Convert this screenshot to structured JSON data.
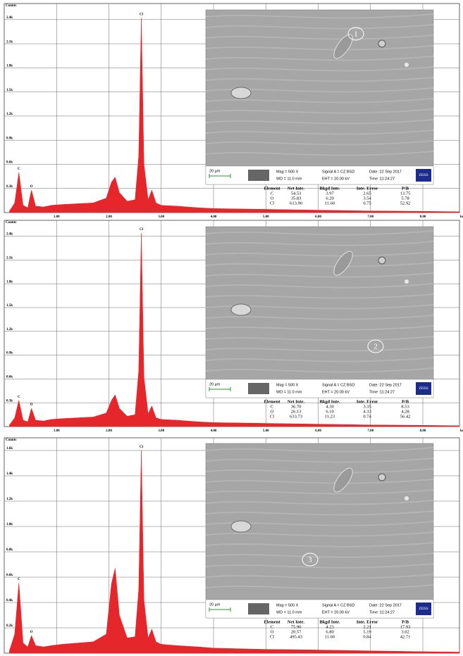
{
  "chart_data": [
    {
      "type": "area",
      "y_label": "Counts",
      "x_label": "keV",
      "color": "#e5262a",
      "grid": true,
      "xlim": [
        0,
        8.7
      ],
      "ylim": [
        0,
        2600
      ],
      "xticks": [
        {
          "value": 1,
          "label": "1.00"
        },
        {
          "value": 2,
          "label": "2.00"
        },
        {
          "value": 3,
          "label": "3.00"
        },
        {
          "value": 4,
          "label": "4.00"
        },
        {
          "value": 5,
          "label": "5.00"
        },
        {
          "value": 6,
          "label": "6.00"
        },
        {
          "value": 7,
          "label": "7.00"
        },
        {
          "value": 8,
          "label": "8.00"
        }
      ],
      "yticks": [
        {
          "value": 300,
          "label": "0.3k"
        },
        {
          "value": 600,
          "label": "0.6k"
        },
        {
          "value": 900,
          "label": "0.9k"
        },
        {
          "value": 1200,
          "label": "1.2k"
        },
        {
          "value": 1500,
          "label": "1.5k"
        },
        {
          "value": 1800,
          "label": "1.8k"
        },
        {
          "value": 2100,
          "label": "2.1k"
        },
        {
          "value": 2400,
          "label": "2.4k"
        }
      ],
      "x": [
        0.1,
        0.2,
        0.28,
        0.36,
        0.45,
        0.52,
        0.6,
        0.75,
        0.9,
        1.1,
        1.4,
        1.7,
        1.95,
        2.05,
        2.12,
        2.2,
        2.35,
        2.5,
        2.57,
        2.62,
        2.67,
        2.75,
        2.82,
        2.9,
        3.0,
        3.3,
        3.7,
        4.0,
        4.5,
        5.0,
        5.5,
        6.0,
        6.5,
        7.0,
        7.5,
        8.0,
        8.5,
        8.7
      ],
      "values": [
        20,
        120,
        500,
        90,
        60,
        280,
        80,
        70,
        90,
        100,
        110,
        120,
        180,
        380,
        440,
        250,
        140,
        160,
        700,
        2420,
        600,
        160,
        280,
        120,
        90,
        80,
        60,
        50,
        45,
        40,
        35,
        30,
        25,
        20,
        18,
        15,
        12,
        10
      ],
      "peak_labels": [
        "C",
        "O",
        "Cl"
      ],
      "inset": {
        "marker": "1",
        "scale": "20 µm",
        "mag": "Mag =    500 X",
        "wd": "WD = 11.0 mm",
        "signal": "Signal A = CZ BSD",
        "eht": "EHT = 20.00 kV",
        "date": "Date :22 Sep 2017",
        "time": "Time :11:24:27",
        "brand": "ZEISS"
      },
      "table": {
        "header": [
          "Element",
          "Net Inte.",
          "Bkgd Inte.",
          "Inte. Error",
          "P/B"
        ],
        "rows": [
          [
            "C",
            "54.53",
            "3.97",
            "2.65",
            "13.75"
          ],
          [
            "O",
            "35.83",
            "6.20",
            "3.54",
            "5.78"
          ],
          [
            "Cl",
            "613.90",
            "11.60",
            "0.75",
            "52.92"
          ]
        ]
      }
    },
    {
      "type": "area",
      "y_label": "Counts",
      "x_label": "keV",
      "color": "#e5262a",
      "grid": true,
      "xlim": [
        0,
        8.7
      ],
      "ylim": [
        0,
        2600
      ],
      "xticks": [
        {
          "value": 1,
          "label": "1.00"
        },
        {
          "value": 2,
          "label": "2.00"
        },
        {
          "value": 3,
          "label": "3.00"
        },
        {
          "value": 4,
          "label": "4.00"
        },
        {
          "value": 5,
          "label": "5.00"
        },
        {
          "value": 6,
          "label": "6.00"
        },
        {
          "value": 7,
          "label": "7.00"
        },
        {
          "value": 8,
          "label": "8.00"
        }
      ],
      "yticks": [
        {
          "value": 300,
          "label": "0.3k"
        },
        {
          "value": 600,
          "label": "0.6k"
        },
        {
          "value": 900,
          "label": "0.9k"
        },
        {
          "value": 1200,
          "label": "1.2k"
        },
        {
          "value": 1500,
          "label": "1.5k"
        },
        {
          "value": 1800,
          "label": "1.8k"
        },
        {
          "value": 2100,
          "label": "2.1k"
        },
        {
          "value": 2400,
          "label": "2.4k"
        }
      ],
      "x": [
        0.1,
        0.2,
        0.28,
        0.36,
        0.45,
        0.52,
        0.6,
        0.75,
        0.9,
        1.1,
        1.4,
        1.7,
        1.95,
        2.05,
        2.12,
        2.2,
        2.35,
        2.5,
        2.57,
        2.62,
        2.67,
        2.75,
        2.82,
        2.9,
        3.0,
        3.3,
        3.7,
        4.0,
        4.5,
        5.0,
        5.5,
        6.0,
        6.5,
        7.0,
        7.5,
        8.0,
        8.5,
        8.7
      ],
      "values": [
        20,
        110,
        330,
        80,
        60,
        230,
        80,
        70,
        90,
        100,
        110,
        120,
        170,
        330,
        400,
        230,
        130,
        150,
        700,
        2440,
        620,
        160,
        260,
        110,
        90,
        80,
        60,
        50,
        45,
        40,
        35,
        30,
        25,
        20,
        18,
        15,
        12,
        10
      ],
      "peak_labels": [
        "C",
        "O",
        "Cl"
      ],
      "inset": {
        "marker": "2",
        "scale": "20 µm",
        "mag": "Mag =    500 X",
        "wd": "WD = 11.0 mm",
        "signal": "Signal A = CZ BSD",
        "eht": "EHT = 20.00 kV",
        "date": "Date :22 Sep 2017",
        "time": "Time :11:24:27",
        "brand": "ZEISS"
      },
      "table": {
        "header": [
          "Element",
          "Net Inte.",
          "Bkgd Inte.",
          "Inte. Error",
          "P/B"
        ],
        "rows": [
          [
            "C",
            "36.70",
            "4.30",
            "3.35",
            "8.53"
          ],
          [
            "O",
            "26.13",
            "6.10",
            "4.33",
            "4.28"
          ],
          [
            "Cl",
            "633.73",
            "11.23",
            "0.74",
            "56.42"
          ]
        ]
      }
    },
    {
      "type": "area",
      "y_label": "Counts",
      "x_label": "keV",
      "color": "#e5262a",
      "grid": true,
      "xlim": [
        0,
        8.7
      ],
      "ylim": [
        0,
        1700
      ],
      "xticks": [
        {
          "value": 1,
          "label": "1.00"
        },
        {
          "value": 2,
          "label": "2.00"
        },
        {
          "value": 3,
          "label": "3.00"
        },
        {
          "value": 4,
          "label": "4.00"
        },
        {
          "value": 5,
          "label": "5.00"
        },
        {
          "value": 6,
          "label": "6.00"
        },
        {
          "value": 7,
          "label": "7.00"
        },
        {
          "value": 8,
          "label": "8.00"
        }
      ],
      "yticks": [
        {
          "value": 200,
          "label": "0.2k"
        },
        {
          "value": 400,
          "label": "0.4k"
        },
        {
          "value": 600,
          "label": "0.6k"
        },
        {
          "value": 800,
          "label": "0.8k"
        },
        {
          "value": 1000,
          "label": "1.0k"
        },
        {
          "value": 1200,
          "label": "1.2k"
        },
        {
          "value": 1400,
          "label": "1.4k"
        },
        {
          "value": 1600,
          "label": "1.6k"
        }
      ],
      "x": [
        0.1,
        0.2,
        0.28,
        0.36,
        0.45,
        0.52,
        0.6,
        0.75,
        0.9,
        1.1,
        1.4,
        1.7,
        1.95,
        2.05,
        2.12,
        2.2,
        2.35,
        2.5,
        2.57,
        2.62,
        2.67,
        2.75,
        2.82,
        2.9,
        3.0,
        3.3,
        3.7,
        4.0,
        4.5,
        5.0,
        5.5,
        6.0,
        6.5,
        7.0,
        7.5,
        8.0,
        8.5,
        8.7
      ],
      "values": [
        20,
        150,
        555,
        80,
        50,
        140,
        60,
        50,
        60,
        70,
        80,
        90,
        150,
        550,
        670,
        300,
        120,
        130,
        500,
        1600,
        420,
        120,
        190,
        90,
        70,
        60,
        50,
        40,
        35,
        30,
        28,
        25,
        22,
        18,
        15,
        12,
        10,
        8
      ],
      "peak_labels": [
        "C",
        "O",
        "Cl"
      ],
      "inset": {
        "marker": "3",
        "scale": "20 µm",
        "mag": "Mag =    500 X",
        "wd": "WD = 11.0 mm",
        "signal": "Signal A = CZ BSD",
        "eht": "EHT = 20.00 kV",
        "date": "Date :22 Sep 2017",
        "time": "Time :11:24:27",
        "brand": "ZEISS"
      },
      "table": {
        "header": [
          "Element",
          "Net Inte.",
          "Bkgd Inte.",
          "Inte. Error",
          "P/B"
        ],
        "rows": [
          [
            "C",
            "75.90",
            "4.23",
            "2.21",
            "17.93"
          ],
          [
            "O",
            "20.57",
            "6.80",
            "5.19",
            "3.02"
          ],
          [
            "Cl",
            "495.43",
            "11.60",
            "0.84",
            "42.71"
          ]
        ]
      }
    }
  ]
}
